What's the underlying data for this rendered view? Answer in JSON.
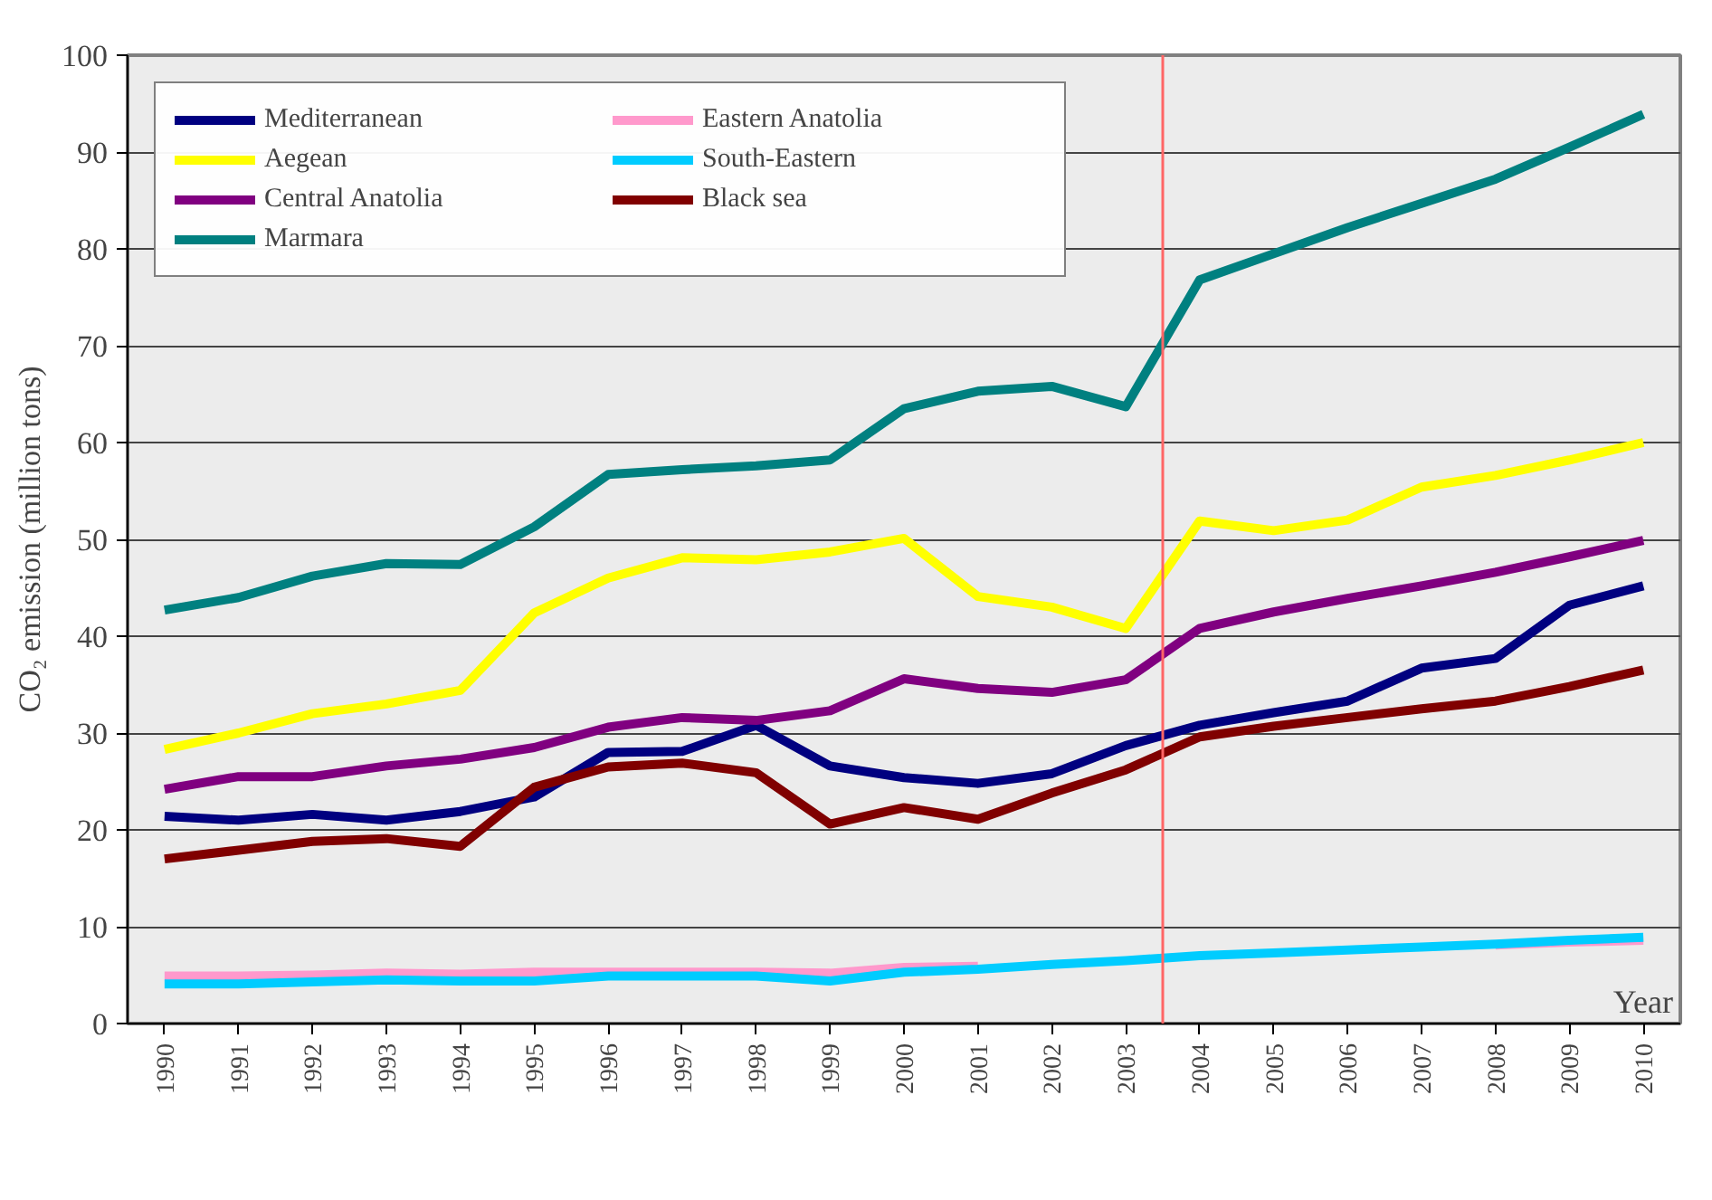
{
  "chart_data": {
    "type": "line",
    "ylabel": "CO₂ emission (million tons)",
    "xlabel": "Year",
    "x": [
      1990,
      1991,
      1992,
      1993,
      1994,
      1995,
      1996,
      1997,
      1998,
      1999,
      2000,
      2001,
      2002,
      2003,
      2004,
      2005,
      2006,
      2007,
      2008,
      2009,
      2010
    ],
    "xlim": [
      1989.5,
      2010.5
    ],
    "xticks": [
      1990,
      1991,
      1992,
      1993,
      1994,
      1995,
      1996,
      1997,
      1998,
      1999,
      2000,
      2001,
      2002,
      2003,
      2004,
      2005,
      2006,
      2007,
      2008,
      2009,
      2010
    ],
    "ylim": [
      0,
      100
    ],
    "yticks": [
      0,
      10,
      20,
      30,
      40,
      50,
      60,
      70,
      80,
      90,
      100
    ],
    "grid": "y",
    "legend": "top left",
    "line_style": "solid",
    "ref_lines": [
      {
        "axis": "x",
        "value": 2003.5,
        "color": "#ff6666"
      }
    ],
    "series": [
      {
        "name": "Mediterranean",
        "color": "#000080",
        "values": [
          21.4,
          21,
          21.6,
          21,
          21.9,
          23.4,
          28,
          28.1,
          30.8,
          26.6,
          25.4,
          24.8,
          25.8,
          28.7,
          30.8,
          32.1,
          33.3,
          36.7,
          37.7,
          43.2,
          45.2
        ]
      },
      {
        "name": "Aegean",
        "color": "#ffff00",
        "values": [
          28.3,
          30,
          32,
          33,
          34.4,
          42.4,
          46,
          48.1,
          47.9,
          48.7,
          50.1,
          44.1,
          43,
          40.8,
          51.9,
          50.9,
          52,
          55.4,
          56.6,
          58.2,
          60
        ]
      },
      {
        "name": "Central Anatolia",
        "color": "#800080",
        "values": [
          24.2,
          25.5,
          25.5,
          26.6,
          27.3,
          28.5,
          30.6,
          31.6,
          31.3,
          32.3,
          35.6,
          34.6,
          34.2,
          35.5,
          40.8,
          42.5,
          43.9,
          45.2,
          46.6,
          48.2,
          49.9
        ]
      },
      {
        "name": "Marmara",
        "color": "#008080",
        "values": [
          42.7,
          44,
          46.2,
          47.5,
          47.4,
          51.3,
          56.7,
          57.2,
          57.6,
          58.2,
          63.5,
          65.3,
          65.8,
          63.7,
          76.8,
          79.5,
          82.2,
          84.7,
          87.2,
          90.5,
          93.9
        ]
      },
      {
        "name": "Eastern Anatolia",
        "color": "#ff99cc",
        "values": [
          4.9,
          4.9,
          5,
          5.2,
          5.1,
          5.3,
          5.3,
          5.3,
          5.3,
          5.2,
          5.8,
          5.9,
          null,
          null,
          null,
          null,
          null,
          null,
          8.1,
          8.4,
          8.6
        ]
      },
      {
        "name": "South-Eastern",
        "color": "#00ccff",
        "values": [
          4.1,
          4.1,
          4.3,
          4.5,
          4.4,
          4.4,
          4.9,
          4.9,
          4.9,
          4.4,
          5.3,
          5.6,
          6.1,
          6.5,
          7,
          7.3,
          7.6,
          7.9,
          8.2,
          8.6,
          8.9
        ]
      },
      {
        "name": "Black sea",
        "color": "#800000",
        "values": [
          17,
          17.9,
          18.8,
          19.1,
          18.3,
          24.4,
          26.5,
          26.9,
          25.9,
          20.6,
          22.3,
          21.1,
          23.8,
          26.2,
          29.6,
          30.7,
          31.6,
          32.5,
          33.3,
          34.8,
          36.5
        ]
      }
    ]
  }
}
